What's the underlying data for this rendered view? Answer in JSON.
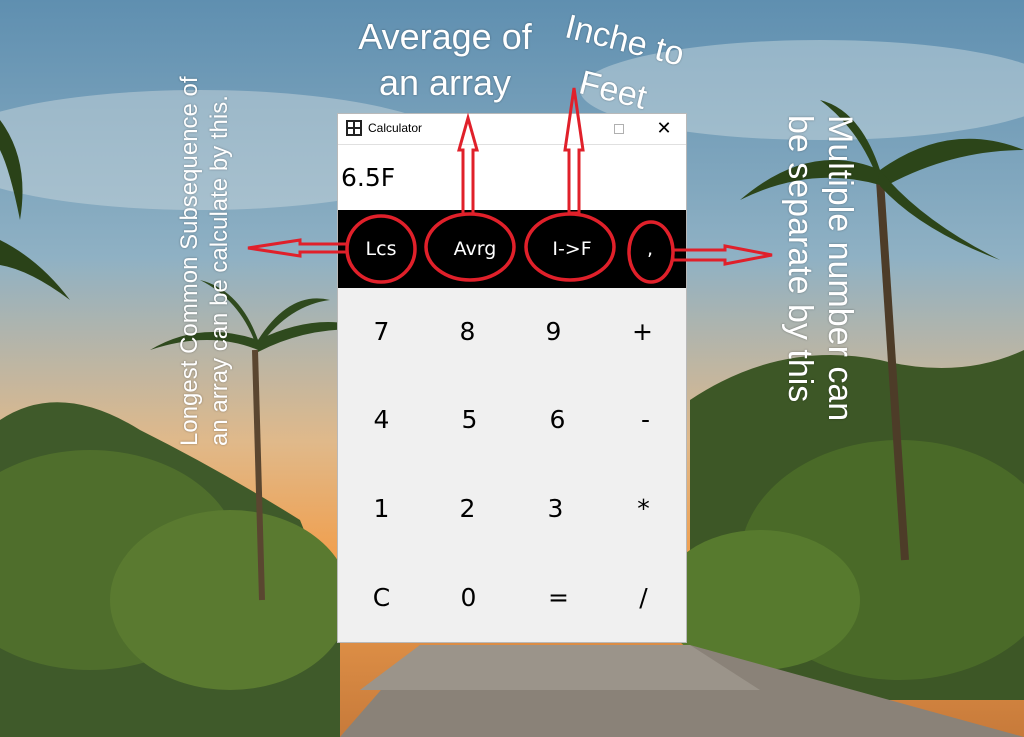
{
  "annotations": {
    "average_line1": "Average of",
    "average_line2": "an array",
    "inch_line1": "Inche to",
    "inch_line2": "Feet",
    "lcs_line1": "Longest Common Subsequence of",
    "lcs_line2": "an array can be calculate by this.",
    "multi_line1": "Multiple number can",
    "multi_line2": "be separate by this"
  },
  "window": {
    "title": "Calculator",
    "close_glyph": "✕"
  },
  "display": {
    "value": "6.5F"
  },
  "function_buttons": [
    "Lcs",
    "Avrg",
    "I->F",
    ","
  ],
  "keypad": [
    [
      "7",
      "8",
      "9",
      "+"
    ],
    [
      "4",
      "5",
      "6",
      "-"
    ],
    [
      "1",
      "2",
      "3",
      "*"
    ],
    [
      "C",
      "0",
      "=",
      "/"
    ]
  ],
  "colors": {
    "annotation_red": "#e0202a",
    "function_bar": "#000000",
    "keypad_bg": "#f0f0f0"
  }
}
